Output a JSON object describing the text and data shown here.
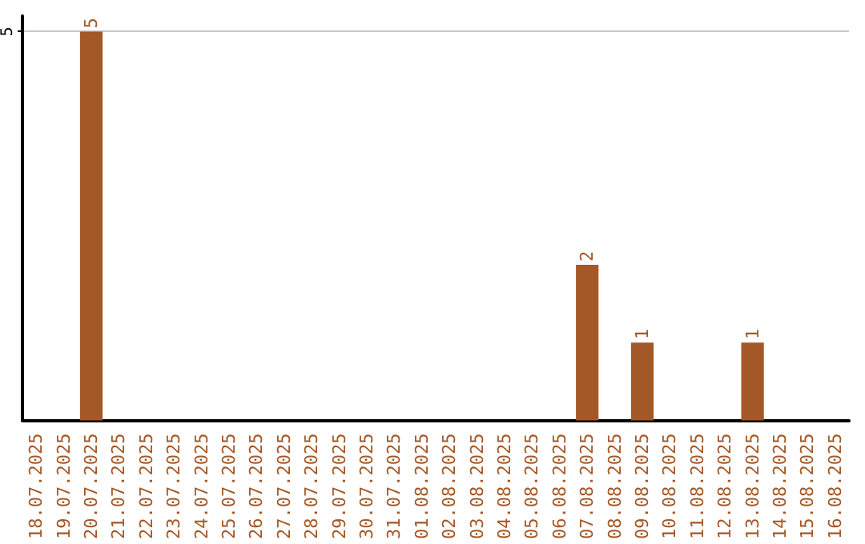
{
  "chart_data": {
    "type": "bar",
    "categories": [
      "18.07.2025",
      "19.07.2025",
      "20.07.2025",
      "21.07.2025",
      "22.07.2025",
      "23.07.2025",
      "24.07.2025",
      "25.07.2025",
      "26.07.2025",
      "27.07.2025",
      "28.07.2025",
      "29.07.2025",
      "30.07.2025",
      "31.07.2025",
      "01.08.2025",
      "02.08.2025",
      "03.08.2025",
      "04.08.2025",
      "05.08.2025",
      "06.08.2025",
      "07.08.2025",
      "08.08.2025",
      "09.08.2025",
      "10.08.2025",
      "11.08.2025",
      "12.08.2025",
      "13.08.2025",
      "14.08.2025",
      "15.08.2025",
      "16.08.2025"
    ],
    "values": [
      0,
      0,
      5,
      0,
      0,
      0,
      0,
      0,
      0,
      0,
      0,
      0,
      0,
      0,
      0,
      0,
      0,
      0,
      0,
      0,
      2,
      0,
      1,
      0,
      0,
      0,
      1,
      0,
      0,
      0
    ],
    "value_labels": [
      null,
      null,
      "5",
      null,
      null,
      null,
      null,
      null,
      null,
      null,
      null,
      null,
      null,
      null,
      null,
      null,
      null,
      null,
      null,
      null,
      "2",
      null,
      "1",
      null,
      null,
      null,
      "1",
      null,
      null,
      null
    ],
    "color": "#a45828",
    "ylim": [
      0,
      5.2
    ],
    "yticks": [
      5
    ],
    "grid": "y"
  }
}
